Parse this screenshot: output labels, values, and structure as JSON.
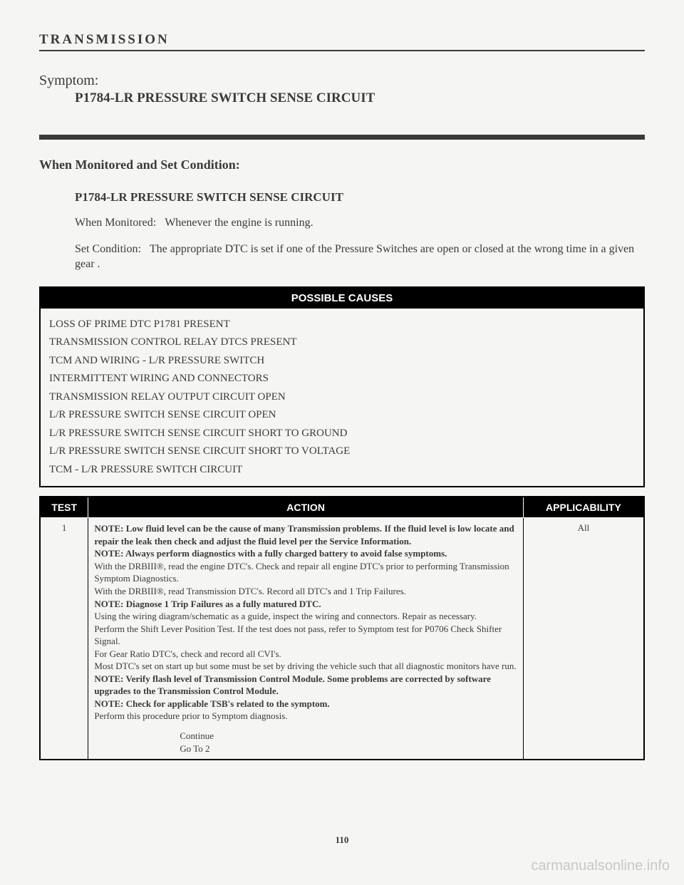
{
  "header": {
    "title": "TRANSMISSION"
  },
  "symptom": {
    "label": "Symptom:",
    "title": "P1784-LR PRESSURE SWITCH SENSE CIRCUIT"
  },
  "monitored": {
    "heading": "When Monitored and Set Condition:",
    "subtitle": "P1784-LR PRESSURE SWITCH SENSE CIRCUIT",
    "when_label": "When Monitored:",
    "when_text": "Whenever the engine is running.",
    "set_label": "Set Condition:",
    "set_text": "The appropriate DTC is set if one of the Pressure Switches are open or closed at the wrong time in a given gear ."
  },
  "causes": {
    "header": "POSSIBLE CAUSES",
    "items": [
      "LOSS OF PRIME DTC P1781 PRESENT",
      "TRANSMISSION CONTROL RELAY DTCS PRESENT",
      "TCM AND WIRING - L/R PRESSURE SWITCH",
      "INTERMITTENT WIRING AND CONNECTORS",
      "TRANSMISSION RELAY OUTPUT CIRCUIT OPEN",
      "L/R PRESSURE SWITCH SENSE CIRCUIT OPEN",
      "L/R PRESSURE SWITCH SENSE CIRCUIT SHORT TO GROUND",
      "L/R PRESSURE SWITCH SENSE CIRCUIT SHORT TO VOLTAGE",
      "TCM - L/R PRESSURE SWITCH CIRCUIT"
    ]
  },
  "test_table": {
    "headers": {
      "test": "TEST",
      "action": "ACTION",
      "applicability": "APPLICABILITY"
    },
    "row": {
      "num": "1",
      "applicability": "All",
      "note1_label": "NOTE: Low fluid level can be the cause of many Transmission problems. If the fluid level is low locate and repair the leak then check and adjust the fluid level per the Service Information.",
      "note2_label": "NOTE: Always perform diagnostics with a fully charged battery to avoid false symptoms.",
      "line3": "With the DRBIII®, read the engine DTC's. Check and repair all engine DTC's prior to performing Transmission Symptom Diagnostics.",
      "line4": "With the DRBIII®, read Transmission DTC's. Record all DTC's and 1 Trip Failures.",
      "note5_label": "NOTE: Diagnose 1 Trip Failures as a fully matured DTC.",
      "line6": "Using the wiring diagram/schematic as a guide, inspect the wiring and connectors. Repair as necessary.",
      "line7": "Perform the Shift Lever Position Test. If the test does not pass, refer to Symptom test for P0706 Check Shifter Signal.",
      "line8": "For Gear Ratio DTC's, check and record all CVI's.",
      "line9": "Most DTC's set on start up but some must be set by driving the vehicle such that all diagnostic monitors have run.",
      "note10_label": "NOTE: Verify flash level of Transmission Control Module. Some problems are corrected by software upgrades to the Transmission Control Module.",
      "note11_label": "NOTE: Check for applicable TSB's related to the symptom.",
      "line12": "Perform this procedure prior to Symptom diagnosis.",
      "continue": "Continue",
      "goto": "Go To 2"
    }
  },
  "page_num": "110",
  "watermark": "carmanualsonline.info"
}
